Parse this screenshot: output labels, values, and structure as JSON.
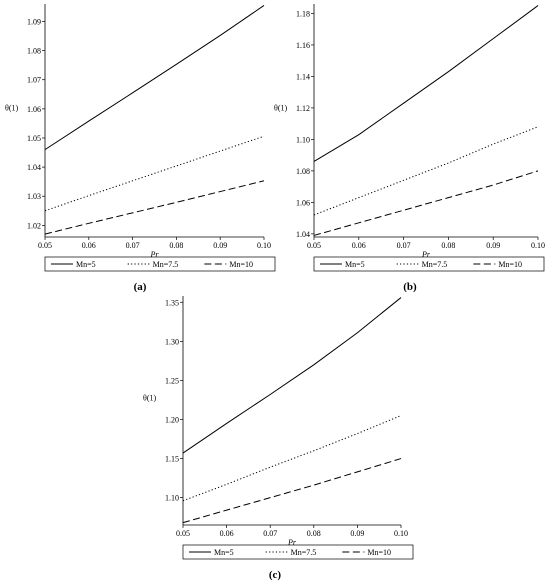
{
  "chart_data": [
    {
      "type": "line",
      "panel_label": "(a)",
      "xlabel": "Pr",
      "ylabel": "θ(1)",
      "xlim": [
        0.05,
        0.1
      ],
      "ylim": [
        1.016,
        1.096
      ],
      "xticks": [
        0.05,
        0.06,
        0.07,
        0.08,
        0.09,
        0.1
      ],
      "xtick_labels": [
        "0.05",
        "0.06",
        "0.07",
        "0.08",
        "0.09",
        "0.10"
      ],
      "yticks": [
        1.02,
        1.03,
        1.04,
        1.05,
        1.06,
        1.07,
        1.08,
        1.09
      ],
      "ytick_labels": [
        "1.02",
        "1.03",
        "1.04",
        "1.05",
        "1.06",
        "1.07",
        "1.08",
        "1.09"
      ],
      "grid": false,
      "legend_position": "bottom",
      "series": [
        {
          "name": "Mn=5",
          "style": "solid",
          "x": [
            0.05,
            0.06,
            0.07,
            0.08,
            0.09,
            0.1
          ],
          "values": [
            1.046,
            1.0558,
            1.0655,
            1.0753,
            1.0852,
            1.0955
          ]
        },
        {
          "name": "Mn=7.5",
          "style": "dotted",
          "x": [
            0.05,
            0.06,
            0.07,
            0.08,
            0.09,
            0.1
          ],
          "values": [
            1.025,
            1.0302,
            1.0353,
            1.0404,
            1.0455,
            1.0506
          ]
        },
        {
          "name": "Mn=10",
          "style": "dashed",
          "x": [
            0.05,
            0.06,
            0.07,
            0.08,
            0.09,
            0.1
          ],
          "values": [
            1.017,
            1.0207,
            1.0243,
            1.0279,
            1.0316,
            1.0353
          ]
        }
      ]
    },
    {
      "type": "line",
      "panel_label": "(b)",
      "xlabel": "Pr",
      "ylabel": "θ(1)",
      "xlim": [
        0.05,
        0.1
      ],
      "ylim": [
        1.038,
        1.186
      ],
      "xticks": [
        0.05,
        0.06,
        0.07,
        0.08,
        0.09,
        0.1
      ],
      "xtick_labels": [
        "0.05",
        "0.06",
        "0.07",
        "0.08",
        "0.09",
        "0.10"
      ],
      "yticks": [
        1.04,
        1.06,
        1.08,
        1.1,
        1.12,
        1.14,
        1.16,
        1.18
      ],
      "ytick_labels": [
        "1.04",
        "1.06",
        "1.08",
        "1.10",
        "1.12",
        "1.14",
        "1.16",
        "1.18"
      ],
      "grid": false,
      "legend_position": "bottom",
      "series": [
        {
          "name": "Mn=5",
          "style": "solid",
          "x": [
            0.05,
            0.06,
            0.07,
            0.08,
            0.09,
            0.1
          ],
          "values": [
            1.086,
            1.103,
            1.123,
            1.143,
            1.164,
            1.185
          ]
        },
        {
          "name": "Mn=7.5",
          "style": "dotted",
          "x": [
            0.05,
            0.06,
            0.07,
            0.08,
            0.09,
            0.1
          ],
          "values": [
            1.052,
            1.063,
            1.074,
            1.085,
            1.097,
            1.108
          ]
        },
        {
          "name": "Mn=10",
          "style": "dashed",
          "x": [
            0.05,
            0.06,
            0.07,
            0.08,
            0.09,
            0.1
          ],
          "values": [
            1.039,
            1.047,
            1.055,
            1.063,
            1.071,
            1.08
          ]
        }
      ]
    },
    {
      "type": "line",
      "panel_label": "(c)",
      "xlabel": "Pr",
      "ylabel": "θ(1)",
      "xlim": [
        0.05,
        0.1
      ],
      "ylim": [
        1.065,
        1.358
      ],
      "xticks": [
        0.05,
        0.06,
        0.07,
        0.08,
        0.09,
        0.1
      ],
      "xtick_labels": [
        "0.05",
        "0.06",
        "0.07",
        "0.08",
        "0.09",
        "0.10"
      ],
      "yticks": [
        1.1,
        1.15,
        1.2,
        1.25,
        1.3,
        1.35
      ],
      "ytick_labels": [
        "1.10",
        "1.15",
        "1.20",
        "1.25",
        "1.30",
        "1.35"
      ],
      "grid": false,
      "legend_position": "bottom",
      "series": [
        {
          "name": "Mn=5",
          "style": "solid",
          "x": [
            0.05,
            0.06,
            0.07,
            0.08,
            0.09,
            0.1
          ],
          "values": [
            1.157,
            1.195,
            1.232,
            1.27,
            1.311,
            1.356
          ]
        },
        {
          "name": "Mn=7.5",
          "style": "dotted",
          "x": [
            0.05,
            0.06,
            0.07,
            0.08,
            0.09,
            0.1
          ],
          "values": [
            1.096,
            1.117,
            1.139,
            1.16,
            1.182,
            1.205
          ]
        },
        {
          "name": "Mn=10",
          "style": "dashed",
          "x": [
            0.05,
            0.06,
            0.07,
            0.08,
            0.09,
            0.1
          ],
          "values": [
            1.068,
            1.084,
            1.1,
            1.116,
            1.133,
            1.15
          ]
        }
      ]
    }
  ]
}
